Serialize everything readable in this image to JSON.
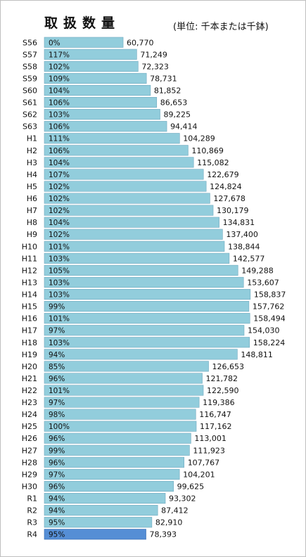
{
  "header": {
    "title": "取扱数量",
    "unit_note": "(単位: 千本または千鉢)"
  },
  "colors": {
    "bar": "#92CDDC",
    "bar_highlight": "#558ED5",
    "border": "#6FA8BE"
  },
  "chart_data": {
    "type": "bar",
    "orientation": "horizontal",
    "title": "取扱数量",
    "unit": "(単位: 千本または千鉢)",
    "categories": [
      "S56",
      "S57",
      "S58",
      "S59",
      "S60",
      "S61",
      "S62",
      "S63",
      "H1",
      "H2",
      "H3",
      "H4",
      "H5",
      "H6",
      "H7",
      "H8",
      "H9",
      "H10",
      "H11",
      "H12",
      "H13",
      "H14",
      "H15",
      "H16",
      "H17",
      "H18",
      "H19",
      "H20",
      "H21",
      "H22",
      "H23",
      "H24",
      "H25",
      "H26",
      "H27",
      "H28",
      "H29",
      "H30",
      "R1",
      "R2",
      "R3",
      "R4"
    ],
    "values": [
      60770,
      71249,
      72323,
      78731,
      81852,
      86653,
      89225,
      94414,
      104289,
      110869,
      115082,
      122679,
      124824,
      127678,
      130179,
      134831,
      137400,
      138844,
      142577,
      149288,
      153607,
      158837,
      157762,
      158494,
      154030,
      158224,
      148811,
      126653,
      121782,
      122590,
      119386,
      116747,
      117162,
      113001,
      111923,
      107767,
      104201,
      99625,
      93302,
      87412,
      82910,
      78393
    ],
    "value_labels": [
      "60,770",
      "71,249",
      "72,323",
      "78,731",
      "81,852",
      "86,653",
      "89,225",
      "94,414",
      "104,289",
      "110,869",
      "115,082",
      "122,679",
      "124,824",
      "127,678",
      "130,179",
      "134,831",
      "137,400",
      "138,844",
      "142,577",
      "149,288",
      "153,607",
      "158,837",
      "157,762",
      "158,494",
      "154,030",
      "158,224",
      "148,811",
      "126,653",
      "121,782",
      "122,590",
      "119,386",
      "116,747",
      "117,162",
      "113,001",
      "111,923",
      "107,767",
      "104,201",
      "99,625",
      "93,302",
      "87,412",
      "82,910",
      "78,393"
    ],
    "percent_labels": [
      "0%",
      "117%",
      "102%",
      "109%",
      "104%",
      "106%",
      "103%",
      "106%",
      "111%",
      "106%",
      "104%",
      "107%",
      "102%",
      "102%",
      "102%",
      "104%",
      "102%",
      "101%",
      "103%",
      "105%",
      "103%",
      "103%",
      "99%",
      "101%",
      "97%",
      "103%",
      "94%",
      "85%",
      "96%",
      "101%",
      "97%",
      "98%",
      "100%",
      "96%",
      "99%",
      "96%",
      "97%",
      "96%",
      "94%",
      "94%",
      "95%",
      "95%"
    ],
    "highlight_index": 41,
    "xlim": [
      0,
      160000
    ],
    "grid": false,
    "legend": "none"
  }
}
